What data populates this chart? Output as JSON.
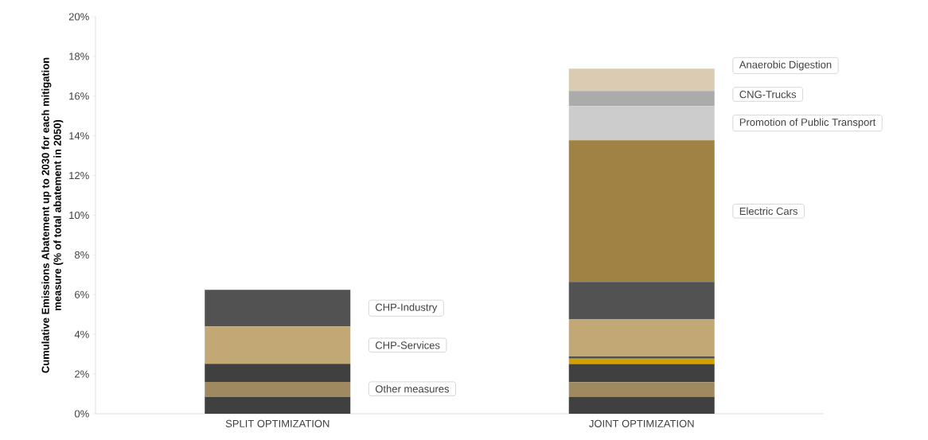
{
  "chart_data": {
    "type": "bar",
    "stacked": true,
    "categories": [
      "SPLIT OPTIMIZATION",
      "JOINT OPTIMIZATION"
    ],
    "ylabel": "Cumulative Emissions Abatement up to 2030 for each mitigation measure (% of total abatement in 2050)",
    "ylim": [
      0,
      20
    ],
    "yticks": [
      {
        "value": 0,
        "label": "0%"
      },
      {
        "value": 2,
        "label": "2%"
      },
      {
        "value": 4,
        "label": "4%"
      },
      {
        "value": 6,
        "label": "6%"
      },
      {
        "value": 8,
        "label": "8%"
      },
      {
        "value": 10,
        "label": "10%"
      },
      {
        "value": 12,
        "label": "12%"
      },
      {
        "value": 14,
        "label": "14%"
      },
      {
        "value": 16,
        "label": "16%"
      },
      {
        "value": 18,
        "label": "18%"
      },
      {
        "value": 20,
        "label": "20%"
      }
    ],
    "series": [
      {
        "color": "#404040",
        "values": [
          0.85,
          0.84
        ]
      },
      {
        "color": "#9e8960",
        "values": [
          0.75,
          0.75
        ]
      },
      {
        "color": "#404040",
        "values": [
          0.91,
          0.91
        ]
      },
      {
        "color": "#d4a000",
        "values": [
          0,
          0.28
        ]
      },
      {
        "color": "#505050",
        "values": [
          0,
          0.11
        ]
      },
      {
        "name": "CHP-Services",
        "color": "#c2a874",
        "values": [
          1.89,
          1.88
        ]
      },
      {
        "name": "CHP-Industry",
        "color": "#525252",
        "values": [
          1.84,
          1.87
        ]
      },
      {
        "name": "Electric Cars",
        "color": "#a08244",
        "values": [
          0,
          7.14
        ]
      },
      {
        "name": "Promotion of Public Transport",
        "color": "#cccccc",
        "values": [
          0,
          1.72
        ]
      },
      {
        "name": "CNG-Trucks",
        "color": "#ababab",
        "values": [
          0,
          0.76
        ]
      },
      {
        "name": "Anaerobic Digestion",
        "color": "#dbcbb3",
        "values": [
          0,
          1.12
        ]
      }
    ],
    "annotations": [
      "Other measures"
    ]
  }
}
